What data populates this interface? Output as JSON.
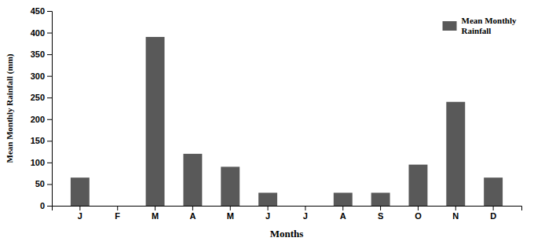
{
  "chart_data": {
    "type": "bar",
    "categories": [
      "J",
      "F",
      "M",
      "A",
      "M",
      "J",
      "J",
      "A",
      "S",
      "O",
      "N",
      "D"
    ],
    "series": [
      {
        "name": "Mean Monthly\nRainfall",
        "color": "#595959",
        "values": [
          65,
          0,
          390,
          120,
          90,
          30,
          0,
          30,
          30,
          95,
          240,
          65
        ]
      }
    ],
    "xlabel": "Months",
    "ylabel": "Mean Monthly Rainfall (mm)",
    "ylim": [
      0,
      450
    ],
    "yticks": [
      0,
      50,
      100,
      150,
      200,
      250,
      300,
      350,
      400,
      450
    ],
    "grid": false,
    "legend": "upper right"
  }
}
